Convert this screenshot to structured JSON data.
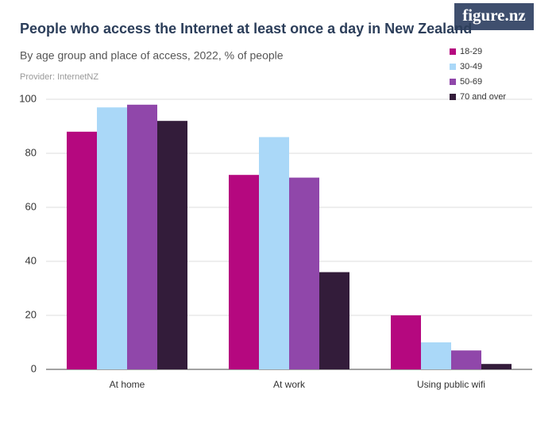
{
  "brand": "figure.nz",
  "chart_data": {
    "type": "bar",
    "title": "People who access the Internet at least once a day in New Zealand",
    "subtitle": "By age group and place of access, 2022, % of people",
    "provider": "Provider: InternetNZ",
    "categories": [
      "At home",
      "At work",
      "Using public wifi"
    ],
    "series": [
      {
        "name": "18-29",
        "color": "#b5087f",
        "values": [
          88,
          72,
          20
        ]
      },
      {
        "name": "30-49",
        "color": "#aad8f8",
        "values": [
          97,
          86,
          10
        ]
      },
      {
        "name": "50-69",
        "color": "#9047aa",
        "values": [
          98,
          71,
          7
        ]
      },
      {
        "name": "70 and over",
        "color": "#331c3a",
        "values": [
          92,
          36,
          2
        ]
      }
    ],
    "ylim": [
      0,
      100
    ],
    "yticks": [
      0,
      20,
      40,
      60,
      80,
      100
    ],
    "grid": true,
    "legend": "top-right"
  }
}
